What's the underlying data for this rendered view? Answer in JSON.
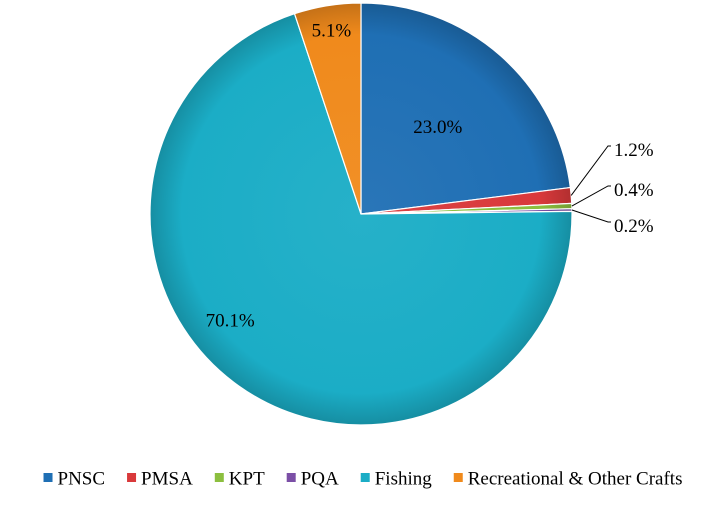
{
  "chart_data": {
    "type": "pie",
    "title": "",
    "legend_position": "bottom",
    "slices": [
      {
        "name": "PNSC",
        "value": 23.0,
        "label": "23.0%",
        "color": "#1f6fb4"
      },
      {
        "name": "PMSA",
        "value": 1.2,
        "label": "1.2%",
        "color": "#d9393b"
      },
      {
        "name": "KPT",
        "value": 0.4,
        "label": "0.4%",
        "color": "#8cbf3f"
      },
      {
        "name": "PQA",
        "value": 0.2,
        "label": "0.2%",
        "color": "#7b4fa6"
      },
      {
        "name": "Fishing",
        "value": 70.1,
        "label": "70.1%",
        "color": "#1badc6"
      },
      {
        "name": "Recreational & Other Crafts",
        "value": 5.1,
        "label": "5.1%",
        "color": "#f08a1c"
      }
    ]
  }
}
